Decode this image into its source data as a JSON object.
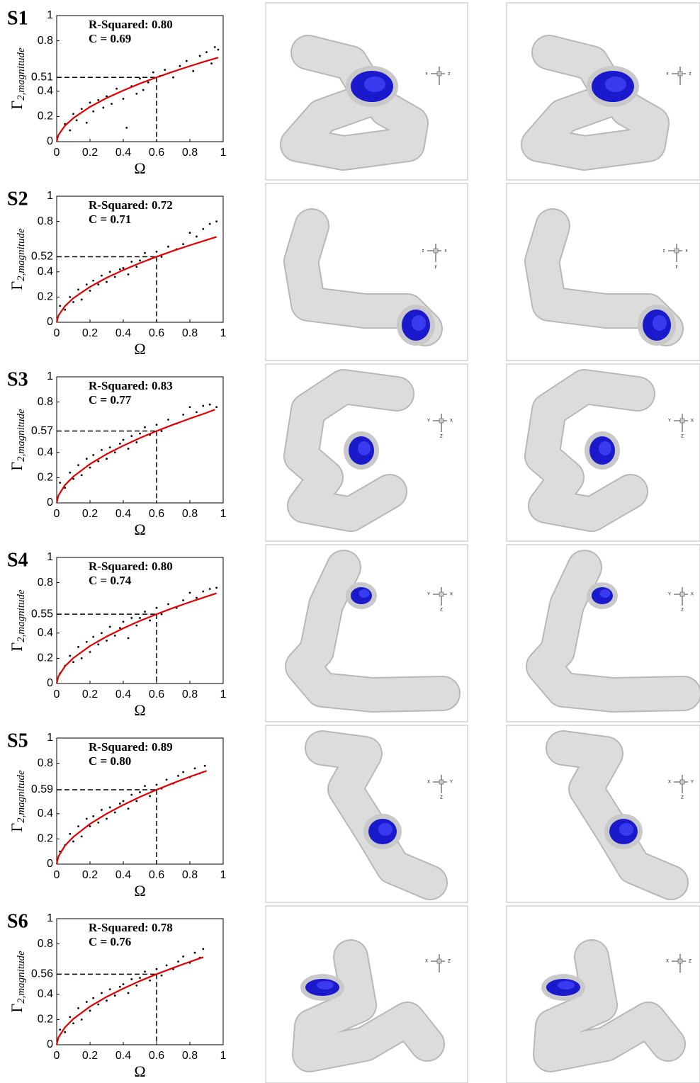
{
  "chart_data": [
    {
      "type": "scatter",
      "title": "S1",
      "annotations": [
        "R-Squared: 0.80",
        "C = 0.69"
      ],
      "xlabel": "Ω",
      "ylabel": "Γ",
      "ylabel_subscript": "2,magnitude",
      "xlim": [
        0,
        1
      ],
      "ylim": [
        0,
        1
      ],
      "xticks": [
        0,
        0.2,
        0.4,
        0.6,
        0.8,
        1
      ],
      "yticks": [
        0,
        0.2,
        0.4,
        0.51,
        0.8,
        1
      ],
      "reference": {
        "x": 0.6,
        "y": 0.51
      },
      "series": [
        {
          "type": "scatter",
          "color": "#000000",
          "x": [
            0.05,
            0.08,
            0.1,
            0.12,
            0.15,
            0.18,
            0.2,
            0.22,
            0.25,
            0.28,
            0.3,
            0.33,
            0.36,
            0.4,
            0.42,
            0.45,
            0.48,
            0.5,
            0.52,
            0.55,
            0.58,
            0.62,
            0.65,
            0.7,
            0.74,
            0.78,
            0.82,
            0.86,
            0.9,
            0.93,
            0.95,
            0.97
          ],
          "values": [
            0.14,
            0.09,
            0.22,
            0.17,
            0.26,
            0.15,
            0.31,
            0.24,
            0.33,
            0.27,
            0.36,
            0.3,
            0.42,
            0.34,
            0.11,
            0.44,
            0.38,
            0.5,
            0.41,
            0.47,
            0.55,
            0.52,
            0.57,
            0.51,
            0.6,
            0.64,
            0.56,
            0.68,
            0.71,
            0.62,
            0.75,
            0.73
          ]
        },
        {
          "type": "line",
          "color": "#e00000",
          "x": [
            0,
            0.01,
            0.05,
            0.1,
            0.2,
            0.3,
            0.4,
            0.5,
            0.6,
            0.7,
            0.8,
            0.9,
            0.97
          ],
          "values": [
            0,
            0.052,
            0.127,
            0.187,
            0.276,
            0.346,
            0.406,
            0.461,
            0.51,
            0.556,
            0.599,
            0.64,
            0.667
          ]
        }
      ]
    },
    {
      "type": "scatter",
      "title": "S2",
      "annotations": [
        "R-Squared: 0.72",
        "C = 0.71"
      ],
      "xlabel": "Ω",
      "ylabel": "Γ",
      "ylabel_subscript": "2,magnitude",
      "xlim": [
        0,
        1
      ],
      "ylim": [
        0,
        1
      ],
      "xticks": [
        0,
        0.2,
        0.4,
        0.6,
        0.8,
        1
      ],
      "yticks": [
        0,
        0.2,
        0.4,
        0.52,
        0.8,
        1
      ],
      "reference": {
        "x": 0.6,
        "y": 0.52
      },
      "series": [
        {
          "type": "scatter",
          "color": "#000000",
          "x": [
            0.02,
            0.05,
            0.08,
            0.1,
            0.13,
            0.15,
            0.18,
            0.2,
            0.22,
            0.25,
            0.27,
            0.3,
            0.32,
            0.35,
            0.38,
            0.4,
            0.43,
            0.45,
            0.48,
            0.5,
            0.53,
            0.56,
            0.6,
            0.63,
            0.67,
            0.72,
            0.76,
            0.8,
            0.84,
            0.88,
            0.92,
            0.96
          ],
          "values": [
            0.13,
            0.1,
            0.2,
            0.16,
            0.26,
            0.18,
            0.3,
            0.25,
            0.33,
            0.3,
            0.37,
            0.32,
            0.4,
            0.36,
            0.42,
            0.43,
            0.38,
            0.48,
            0.44,
            0.49,
            0.55,
            0.5,
            0.56,
            0.52,
            0.6,
            0.58,
            0.62,
            0.71,
            0.68,
            0.74,
            0.78,
            0.8
          ]
        },
        {
          "type": "line",
          "color": "#e00000",
          "x": [
            0,
            0.01,
            0.05,
            0.1,
            0.2,
            0.3,
            0.4,
            0.5,
            0.6,
            0.7,
            0.8,
            0.9,
            0.96
          ],
          "values": [
            0,
            0.053,
            0.129,
            0.191,
            0.281,
            0.353,
            0.414,
            0.47,
            0.52,
            0.567,
            0.611,
            0.653,
            0.677
          ]
        }
      ]
    },
    {
      "type": "scatter",
      "title": "S3",
      "annotations": [
        "R-Squared: 0.83",
        "C = 0.77"
      ],
      "xlabel": "Ω",
      "ylabel": "Γ",
      "ylabel_subscript": "2,magnitude",
      "xlim": [
        0,
        1
      ],
      "ylim": [
        0,
        1
      ],
      "xticks": [
        0,
        0.2,
        0.4,
        0.6,
        0.8,
        1
      ],
      "yticks": [
        0,
        0.2,
        0.4,
        0.57,
        0.8,
        1
      ],
      "reference": {
        "x": 0.6,
        "y": 0.57
      },
      "series": [
        {
          "type": "scatter",
          "color": "#000000",
          "x": [
            0.02,
            0.05,
            0.08,
            0.1,
            0.13,
            0.15,
            0.18,
            0.2,
            0.22,
            0.25,
            0.27,
            0.3,
            0.32,
            0.35,
            0.38,
            0.4,
            0.43,
            0.45,
            0.48,
            0.5,
            0.53,
            0.56,
            0.6,
            0.63,
            0.67,
            0.72,
            0.76,
            0.8,
            0.84,
            0.88,
            0.92,
            0.96
          ],
          "values": [
            0.16,
            0.12,
            0.24,
            0.19,
            0.3,
            0.22,
            0.35,
            0.28,
            0.38,
            0.33,
            0.42,
            0.35,
            0.44,
            0.4,
            0.47,
            0.5,
            0.43,
            0.53,
            0.48,
            0.55,
            0.6,
            0.54,
            0.62,
            0.57,
            0.66,
            0.63,
            0.7,
            0.76,
            0.72,
            0.77,
            0.78,
            0.76
          ]
        },
        {
          "type": "line",
          "color": "#e00000",
          "x": [
            0,
            0.01,
            0.05,
            0.1,
            0.2,
            0.3,
            0.4,
            0.5,
            0.6,
            0.7,
            0.8,
            0.9,
            0.95
          ],
          "values": [
            0,
            0.058,
            0.142,
            0.209,
            0.308,
            0.387,
            0.454,
            0.515,
            0.57,
            0.621,
            0.669,
            0.715,
            0.74
          ]
        }
      ]
    },
    {
      "type": "scatter",
      "title": "S4",
      "annotations": [
        "R-Squared: 0.80",
        "C = 0.74"
      ],
      "xlabel": "Ω",
      "ylabel": "Γ",
      "ylabel_subscript": "2,magnitude",
      "xlim": [
        0,
        1
      ],
      "ylim": [
        0,
        1
      ],
      "xticks": [
        0,
        0.2,
        0.4,
        0.6,
        0.8,
        1
      ],
      "yticks": [
        0,
        0.2,
        0.4,
        0.55,
        0.8,
        1
      ],
      "reference": {
        "x": 0.6,
        "y": 0.55
      },
      "series": [
        {
          "type": "scatter",
          "color": "#000000",
          "x": [
            0.02,
            0.05,
            0.08,
            0.1,
            0.13,
            0.15,
            0.18,
            0.2,
            0.22,
            0.25,
            0.27,
            0.3,
            0.32,
            0.35,
            0.38,
            0.4,
            0.43,
            0.45,
            0.48,
            0.5,
            0.53,
            0.56,
            0.6,
            0.63,
            0.67,
            0.72,
            0.76,
            0.8,
            0.84,
            0.88,
            0.92,
            0.96
          ],
          "values": [
            0.08,
            0.14,
            0.22,
            0.17,
            0.29,
            0.2,
            0.33,
            0.25,
            0.37,
            0.31,
            0.4,
            0.34,
            0.45,
            0.38,
            0.44,
            0.49,
            0.36,
            0.52,
            0.46,
            0.52,
            0.57,
            0.5,
            0.6,
            0.55,
            0.63,
            0.6,
            0.66,
            0.72,
            0.68,
            0.73,
            0.75,
            0.76
          ]
        },
        {
          "type": "line",
          "color": "#e00000",
          "x": [
            0,
            0.01,
            0.05,
            0.1,
            0.2,
            0.3,
            0.4,
            0.5,
            0.6,
            0.7,
            0.8,
            0.9,
            0.96
          ],
          "values": [
            0,
            0.056,
            0.137,
            0.202,
            0.298,
            0.373,
            0.438,
            0.497,
            0.55,
            0.6,
            0.646,
            0.69,
            0.716
          ]
        }
      ]
    },
    {
      "type": "scatter",
      "title": "S5",
      "annotations": [
        "R-Squared: 0.89",
        "C = 0.80"
      ],
      "xlabel": "Ω",
      "ylabel": "Γ",
      "ylabel_subscript": "2,magnitude",
      "xlim": [
        0,
        1
      ],
      "ylim": [
        0,
        1
      ],
      "xticks": [
        0,
        0.2,
        0.4,
        0.6,
        0.8,
        1
      ],
      "yticks": [
        0,
        0.2,
        0.4,
        0.59,
        0.8,
        1
      ],
      "reference": {
        "x": 0.6,
        "y": 0.59
      },
      "series": [
        {
          "type": "scatter",
          "color": "#000000",
          "x": [
            0.02,
            0.05,
            0.08,
            0.1,
            0.13,
            0.15,
            0.18,
            0.2,
            0.22,
            0.25,
            0.27,
            0.3,
            0.32,
            0.35,
            0.38,
            0.4,
            0.43,
            0.45,
            0.48,
            0.5,
            0.53,
            0.56,
            0.6,
            0.63,
            0.66,
            0.7,
            0.73,
            0.76,
            0.8,
            0.83,
            0.86,
            0.89
          ],
          "values": [
            0.1,
            0.15,
            0.24,
            0.18,
            0.3,
            0.22,
            0.36,
            0.3,
            0.38,
            0.33,
            0.43,
            0.36,
            0.45,
            0.41,
            0.48,
            0.5,
            0.44,
            0.55,
            0.5,
            0.57,
            0.62,
            0.54,
            0.63,
            0.6,
            0.67,
            0.64,
            0.7,
            0.73,
            0.69,
            0.76,
            0.72,
            0.78
          ]
        },
        {
          "type": "line",
          "color": "#e00000",
          "x": [
            0,
            0.01,
            0.05,
            0.1,
            0.2,
            0.3,
            0.4,
            0.5,
            0.6,
            0.7,
            0.8,
            0.9
          ],
          "values": [
            0,
            0.06,
            0.147,
            0.216,
            0.319,
            0.4,
            0.47,
            0.533,
            0.59,
            0.643,
            0.693,
            0.74
          ]
        }
      ]
    },
    {
      "type": "scatter",
      "title": "S6",
      "annotations": [
        "R-Squared: 0.78",
        "C = 0.76"
      ],
      "xlabel": "Ω",
      "ylabel": "Γ",
      "ylabel_subscript": "2,magnitude",
      "xlim": [
        0,
        1
      ],
      "ylim": [
        0,
        1
      ],
      "xticks": [
        0,
        0.2,
        0.4,
        0.6,
        0.8,
        1
      ],
      "yticks": [
        0,
        0.2,
        0.4,
        0.56,
        0.8,
        1
      ],
      "reference": {
        "x": 0.6,
        "y": 0.56
      },
      "series": [
        {
          "type": "scatter",
          "color": "#000000",
          "x": [
            0.02,
            0.05,
            0.08,
            0.1,
            0.13,
            0.15,
            0.18,
            0.2,
            0.22,
            0.25,
            0.27,
            0.3,
            0.32,
            0.35,
            0.38,
            0.4,
            0.43,
            0.45,
            0.48,
            0.5,
            0.53,
            0.56,
            0.6,
            0.63,
            0.66,
            0.7,
            0.73,
            0.76,
            0.8,
            0.83,
            0.86,
            0.88
          ],
          "values": [
            0.12,
            0.1,
            0.22,
            0.17,
            0.29,
            0.2,
            0.34,
            0.27,
            0.37,
            0.32,
            0.41,
            0.35,
            0.44,
            0.39,
            0.46,
            0.48,
            0.41,
            0.52,
            0.47,
            0.53,
            0.58,
            0.51,
            0.6,
            0.55,
            0.63,
            0.6,
            0.66,
            0.7,
            0.65,
            0.73,
            0.69,
            0.76
          ]
        },
        {
          "type": "line",
          "color": "#e00000",
          "x": [
            0,
            0.01,
            0.05,
            0.1,
            0.2,
            0.3,
            0.4,
            0.5,
            0.6,
            0.7,
            0.8,
            0.88
          ],
          "values": [
            0,
            0.057,
            0.139,
            0.205,
            0.303,
            0.38,
            0.446,
            0.506,
            0.56,
            0.61,
            0.658,
            0.695
          ]
        }
      ]
    }
  ],
  "renders": [
    {
      "axis_labels": [
        "x",
        "z"
      ]
    },
    {
      "axis_labels": [
        "z",
        "x",
        "y"
      ]
    },
    {
      "axis_labels": [
        "Y",
        "X",
        "Z"
      ]
    },
    {
      "axis_labels": [
        "Y",
        "X",
        "Z"
      ]
    },
    {
      "axis_labels": [
        "X",
        "Y",
        "Z"
      ]
    },
    {
      "axis_labels": [
        "X",
        "Z"
      ]
    }
  ]
}
